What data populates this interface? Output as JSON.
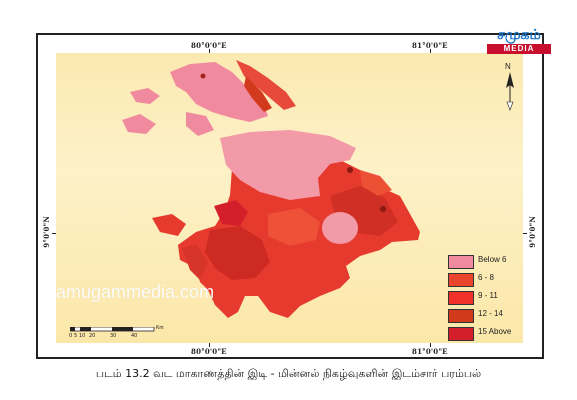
{
  "logo": {
    "name": "சமுகம்",
    "band": "MEDIA"
  },
  "graticule": {
    "top_left": "80°0'0\"E",
    "top_right": "81°0'0\"E",
    "bottom_left": "80°0'0\"E",
    "bottom_right": "81°0'0\"E",
    "left": "9°0'0\"N",
    "right": "9°0'0\"N"
  },
  "north_arrow": {
    "label": "N"
  },
  "legend": {
    "items": [
      {
        "label": "Below 6",
        "color": "#f08a9e"
      },
      {
        "label": "6 - 8",
        "color": "#e8452c"
      },
      {
        "label": "9 - 11",
        "color": "#f0302a"
      },
      {
        "label": "12 - 14",
        "color": "#d23a1e"
      },
      {
        "label": "15 Above",
        "color": "#d41e2a"
      }
    ]
  },
  "scale_bar": {
    "unit": "Km",
    "ticks": [
      "0",
      "5",
      "10",
      "20",
      "30",
      "40"
    ]
  },
  "watermark": "amugammedia.com",
  "caption": "படம் 13.2 வட மாகாணத்தின் இடி - மின்னல் நிகழ்வுகளின் இடம்சார் பரம்பல்"
}
